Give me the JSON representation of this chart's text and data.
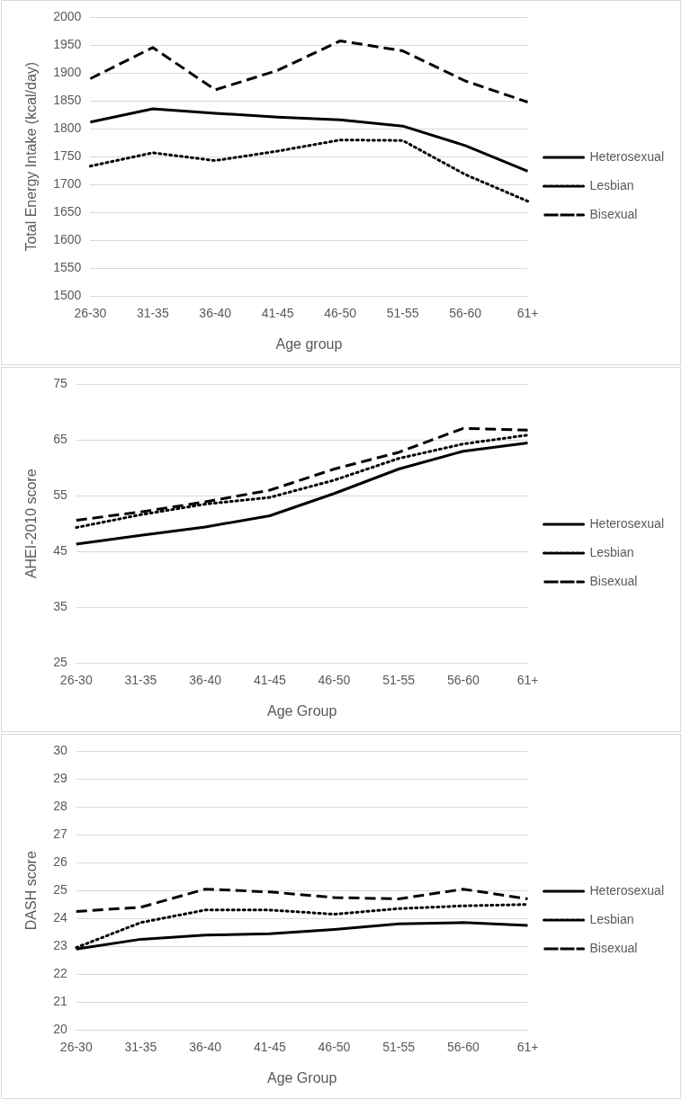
{
  "chart_data": [
    {
      "type": "line",
      "xlabel": "Age group",
      "ylabel": "Total Energy Intake (kcal/day)",
      "categories": [
        "26-30",
        "31-35",
        "36-40",
        "41-45",
        "46-50",
        "51-55",
        "56-60",
        "61+"
      ],
      "ylim": [
        1500,
        2000
      ],
      "yticks": [
        1500,
        1550,
        1600,
        1650,
        1700,
        1750,
        1800,
        1850,
        1900,
        1950,
        2000
      ],
      "grid": "y",
      "legend": "right",
      "marker": "none",
      "series": [
        {
          "name": "Heterosexual",
          "color": "#000000",
          "line_style": "solid",
          "values": [
            1812,
            1836,
            1828,
            1821,
            1816,
            1805,
            1770,
            1724
          ]
        },
        {
          "name": "Lesbian",
          "color": "#000000",
          "line_style": "dotted",
          "values": [
            1733,
            1757,
            1743,
            1760,
            1780,
            1779,
            1718,
            1670
          ]
        },
        {
          "name": "Bisexual",
          "color": "#000000",
          "line_style": "dashed",
          "values": [
            1890,
            1946,
            1870,
            1905,
            1958,
            1940,
            1886,
            1848
          ]
        }
      ]
    },
    {
      "type": "line",
      "xlabel": "Age Group",
      "ylabel": "AHEI-2010 score",
      "categories": [
        "26-30",
        "31-35",
        "36-40",
        "41-45",
        "46-50",
        "51-55",
        "56-60",
        "61+"
      ],
      "ylim": [
        25,
        75
      ],
      "yticks": [
        25,
        35,
        45,
        55,
        65,
        75
      ],
      "grid": "y",
      "legend": "right",
      "marker": "none",
      "series": [
        {
          "name": "Heterosexual",
          "color": "#000000",
          "line_style": "solid",
          "values": [
            46.3,
            47.9,
            49.4,
            51.4,
            55.4,
            59.8,
            63.0,
            64.5
          ]
        },
        {
          "name": "Lesbian",
          "color": "#000000",
          "line_style": "dotted",
          "values": [
            49.3,
            51.6,
            53.5,
            54.7,
            57.8,
            61.7,
            64.3,
            65.9
          ]
        },
        {
          "name": "Bisexual",
          "color": "#000000",
          "line_style": "dashed",
          "values": [
            50.6,
            52.1,
            53.9,
            56.0,
            59.8,
            62.8,
            67.1,
            66.8
          ]
        }
      ]
    },
    {
      "type": "line",
      "xlabel": "Age Group",
      "ylabel": "DASH score",
      "categories": [
        "26-30",
        "31-35",
        "36-40",
        "41-45",
        "46-50",
        "51-55",
        "56-60",
        "61+"
      ],
      "ylim": [
        20,
        30
      ],
      "yticks": [
        20,
        21,
        22,
        23,
        24,
        25,
        26,
        27,
        28,
        29,
        30
      ],
      "grid": "y",
      "legend": "right",
      "marker": "none",
      "series": [
        {
          "name": "Heterosexual",
          "color": "#000000",
          "line_style": "solid",
          "values": [
            22.9,
            23.25,
            23.4,
            23.45,
            23.6,
            23.8,
            23.85,
            23.75
          ]
        },
        {
          "name": "Lesbian",
          "color": "#000000",
          "line_style": "dotted",
          "values": [
            22.95,
            23.85,
            24.3,
            24.3,
            24.15,
            24.35,
            24.45,
            24.5
          ]
        },
        {
          "name": "Bisexual",
          "color": "#000000",
          "line_style": "dashed",
          "values": [
            24.25,
            24.4,
            25.05,
            24.95,
            24.75,
            24.7,
            25.05,
            24.7
          ]
        }
      ]
    }
  ]
}
